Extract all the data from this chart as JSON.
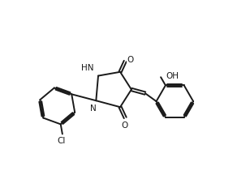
{
  "bg_color": "#ffffff",
  "bond_color": "#1a1a1a",
  "bond_lw": 1.4,
  "text_color": "#1a1a1a",
  "font_size": 7.5,
  "xlim": [
    0.0,
    10.5
  ],
  "ylim": [
    2.5,
    8.5
  ]
}
